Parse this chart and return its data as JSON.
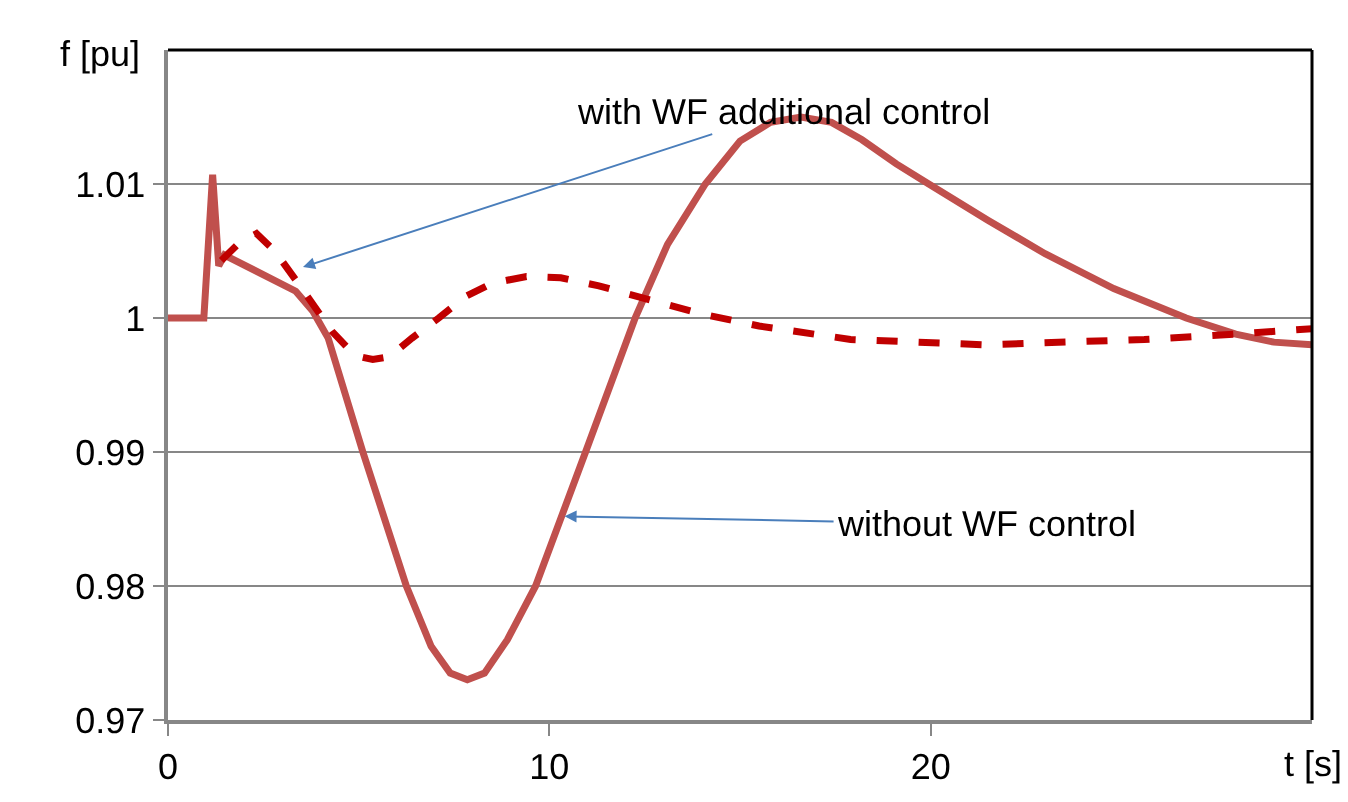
{
  "chart_data": {
    "type": "line",
    "xlabel": "t [s]",
    "ylabel": "f [pu]",
    "xlim": [
      0,
      30
    ],
    "xticks": [
      0,
      10,
      20
    ],
    "ylim": [
      0.97,
      1.02
    ],
    "yticks": [
      0.97,
      0.98,
      0.99,
      1,
      1.01
    ],
    "grid": "y",
    "marker": "none",
    "series": [
      {
        "color": "#c0504d",
        "line_style": "solid",
        "x": [
          0,
          0.94,
          1.17,
          1.33,
          1.48,
          3.35,
          3.8,
          4.2,
          5.11,
          6.25,
          6.9,
          7.4,
          7.85,
          8.3,
          8.9,
          9.64,
          10.95,
          12.25,
          13.1,
          14.09,
          15.0,
          15.8,
          16.6,
          17.4,
          18.2,
          19.1,
          19.95,
          21.5,
          23,
          24.8,
          26.7,
          28,
          29,
          30
        ],
        "values": [
          1.0,
          1.0,
          1.0107,
          1.0039,
          1.0047,
          1.002,
          1.0005,
          0.9985,
          0.99,
          0.98,
          0.9755,
          0.9735,
          0.973,
          0.9735,
          0.976,
          0.98,
          0.99,
          1.0,
          1.0055,
          1.01,
          1.0132,
          1.0146,
          1.015,
          1.0146,
          1.0133,
          1.0115,
          1.01,
          1.0073,
          1.0048,
          1.0022,
          1.0,
          0.9988,
          0.9982,
          0.998
        ]
      },
      {
        "color": "#c00000",
        "line_style": "dashed",
        "x": [
          1.4,
          1.9,
          2.32,
          2.8,
          3.46,
          4.3,
          4.9,
          5.37,
          5.8,
          6.4,
          7.1,
          7.8,
          8.5,
          9.4,
          10.3,
          11.3,
          12.7,
          14,
          15.5,
          17.9,
          21.4,
          25.6,
          28,
          30
        ],
        "values": [
          1.0043,
          1.0057,
          1.0063,
          1.005,
          1.0024,
          0.999,
          0.9972,
          0.9969,
          0.9971,
          0.9985,
          1.0,
          1.0016,
          1.0026,
          1.0031,
          1.003,
          1.0024,
          1.0013,
          1.0003,
          0.9994,
          0.9984,
          0.998,
          0.9984,
          0.9988,
          0.9992
        ]
      }
    ],
    "annotations": [
      {
        "text": "with WF additional control",
        "x": 3.54,
        "y": 1.0038
      },
      {
        "text": "without WF control",
        "x": 10.4,
        "y": 0.9852
      }
    ]
  }
}
